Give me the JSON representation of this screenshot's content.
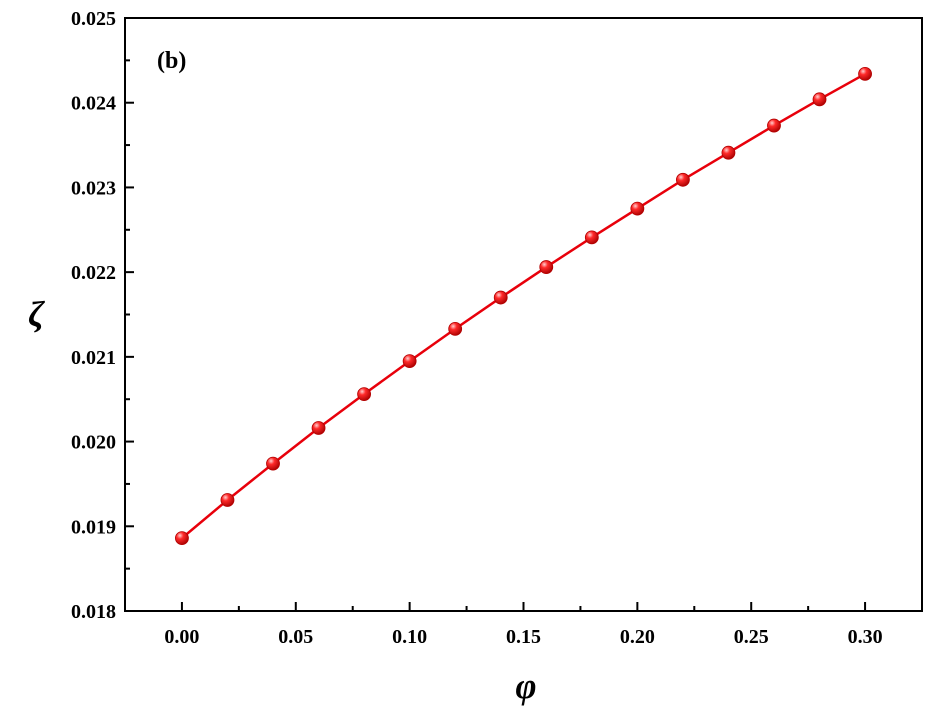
{
  "chart_data": {
    "type": "line",
    "panel_label": "(b)",
    "xlabel": "φ",
    "ylabel": "ζ",
    "xlim": [
      -0.025,
      0.325
    ],
    "ylim": [
      0.018,
      0.025
    ],
    "xticks": [
      "0.00",
      "0.05",
      "0.10",
      "0.15",
      "0.20",
      "0.25",
      "0.30"
    ],
    "yticks": [
      "0.018",
      "0.019",
      "0.020",
      "0.021",
      "0.022",
      "0.023",
      "0.024",
      "0.025"
    ],
    "grid": false,
    "colors": {
      "series": "#e8000b",
      "axes": "#000000"
    },
    "series": [
      {
        "x": [
          0.0,
          0.02,
          0.04,
          0.06,
          0.08,
          0.1,
          0.12,
          0.14,
          0.16,
          0.18,
          0.2,
          0.22,
          0.24,
          0.26,
          0.28,
          0.3
        ],
        "values": [
          0.01886,
          0.01931,
          0.01974,
          0.02016,
          0.02056,
          0.02095,
          0.02133,
          0.0217,
          0.02206,
          0.02241,
          0.02275,
          0.02309,
          0.02341,
          0.02373,
          0.02404,
          0.02434
        ]
      }
    ]
  }
}
